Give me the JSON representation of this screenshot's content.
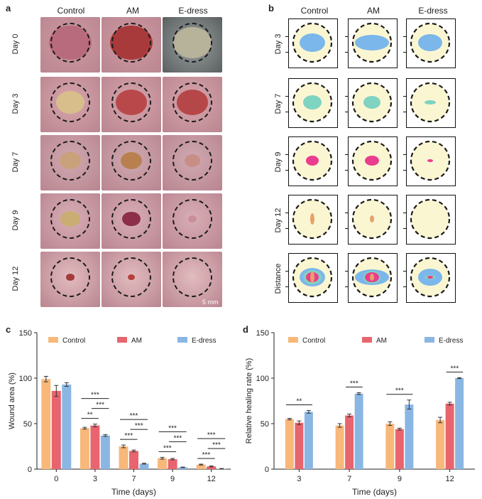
{
  "panel_labels": {
    "a": "a",
    "b": "b",
    "c": "c",
    "d": "d"
  },
  "groups": [
    "Control",
    "AM",
    "E-dress"
  ],
  "photo_rows": [
    "Day 0",
    "Day 3",
    "Day 7",
    "Day 9",
    "Day 12"
  ],
  "trace_rows": [
    "Day 3",
    "Day 7",
    "Day 9",
    "Day 12",
    "Distance"
  ],
  "scale_bar": "5 mm",
  "colors": {
    "control": "#f7b87a",
    "am": "#e8646e",
    "edress": "#8ab6e3",
    "trace_bg": "#fbf6d2",
    "day3": "#7bb7ea",
    "day7": "#7fd3c1",
    "day9": "#ea3d8e",
    "day12": "#e9a06b"
  },
  "chart_data": [
    {
      "type": "bar",
      "title": "",
      "xlabel": "Time (days)",
      "ylabel": "Wound area (%)",
      "categories": [
        "0",
        "3",
        "7",
        "9",
        "12"
      ],
      "ylim": [
        0,
        150
      ],
      "yticks": [
        "0",
        "50",
        "100",
        "150"
      ],
      "series": [
        {
          "name": "Control",
          "values": [
            99,
            45,
            25,
            12,
            5
          ],
          "errors": [
            3,
            1,
            1.5,
            1,
            0.5
          ]
        },
        {
          "name": "AM",
          "values": [
            86,
            48,
            20,
            11,
            3
          ],
          "errors": [
            6,
            1.5,
            1,
            0.8,
            0.5
          ]
        },
        {
          "name": "E-dress",
          "values": [
            93,
            37,
            6,
            2,
            0.5
          ],
          "errors": [
            2,
            1,
            0.5,
            0.3,
            0.2
          ]
        }
      ],
      "significance": [
        {
          "day": "3",
          "pairs": [
            "**",
            "***",
            "***"
          ]
        },
        {
          "day": "7",
          "pairs": [
            "***",
            "***",
            "***"
          ]
        },
        {
          "day": "9",
          "pairs": [
            "***",
            "***",
            "***"
          ]
        },
        {
          "day": "12",
          "pairs": [
            "***",
            "***",
            "***"
          ]
        }
      ]
    },
    {
      "type": "bar",
      "title": "",
      "xlabel": "Time (days)",
      "ylabel": "Relative healing rate (%)",
      "categories": [
        "3",
        "7",
        "9",
        "12"
      ],
      "ylim": [
        0,
        150
      ],
      "yticks": [
        "0",
        "50",
        "100",
        "150"
      ],
      "series": [
        {
          "name": "Control",
          "values": [
            55,
            48,
            50,
            54
          ],
          "errors": [
            0.8,
            2,
            2,
            3
          ]
        },
        {
          "name": "AM",
          "values": [
            51,
            59,
            44,
            72
          ],
          "errors": [
            2,
            1.5,
            1,
            1.5
          ]
        },
        {
          "name": "E-dress",
          "values": [
            63,
            83,
            71,
            100
          ],
          "errors": [
            1.5,
            1,
            5,
            0.5
          ]
        }
      ],
      "significance": [
        {
          "day": "3",
          "label": "**"
        },
        {
          "day": "7",
          "label": "***"
        },
        {
          "day": "9",
          "label": "***"
        },
        {
          "day": "12",
          "label": "***"
        }
      ]
    }
  ]
}
